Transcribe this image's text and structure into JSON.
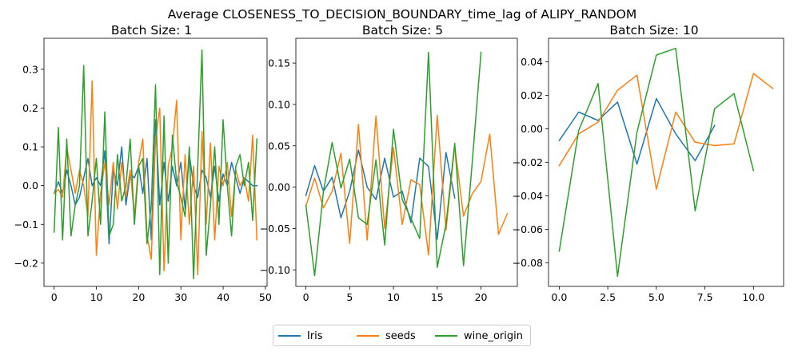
{
  "suptitle": "Average CLOSENESS_TO_DECISION_BOUNDARY_time_lag of ALIPY_RANDOM",
  "legend": {
    "items": [
      {
        "label": "Iris",
        "color": "#1f77b4"
      },
      {
        "label": "seeds",
        "color": "#ff7f0e"
      },
      {
        "label": "wine_origin",
        "color": "#2ca02c"
      }
    ],
    "placement": "bottom-center"
  },
  "chart_data": [
    {
      "type": "line",
      "title": "Batch Size: 1",
      "xlim": [
        -2.4,
        50.4
      ],
      "ylim": [
        -0.26,
        0.38
      ],
      "xticks": [
        0,
        10,
        20,
        30,
        40,
        50
      ],
      "yticks": [
        -0.2,
        -0.1,
        0.0,
        0.1,
        0.2,
        0.3
      ],
      "ytick_labels": [
        "−0.2",
        "−0.1",
        "0.0",
        "0.1",
        "0.2",
        "0.3"
      ],
      "series": [
        {
          "name": "Iris",
          "color": "#1f77b4",
          "x": [
            0,
            1,
            2,
            3,
            4,
            5,
            6,
            7,
            8,
            9,
            10,
            11,
            12,
            13,
            14,
            15,
            16,
            17,
            18,
            19,
            20,
            21,
            22,
            23,
            24,
            25,
            26,
            27,
            28,
            29,
            30,
            31,
            32,
            33,
            34,
            35,
            36,
            37,
            38,
            39,
            40,
            41,
            42,
            43,
            44,
            45,
            46,
            47,
            48
          ],
          "y": [
            -0.02,
            0.01,
            -0.02,
            0.04,
            0.0,
            -0.05,
            -0.03,
            0.02,
            0.07,
            0.0,
            0.02,
            0.0,
            0.09,
            -0.15,
            0.04,
            0.0,
            0.1,
            -0.05,
            0.03,
            0.02,
            0.05,
            -0.02,
            0.07,
            -0.14,
            0.17,
            -0.05,
            0.06,
            -0.04,
            0.05,
            0.0,
            0.06,
            -0.06,
            0.08,
            0.0,
            -0.03,
            0.04,
            0.02,
            -0.03,
            0.05,
            -0.04,
            0.03,
            0.0,
            0.06,
            0.02,
            -0.02,
            0.02,
            0.01,
            0.0,
            0.0
          ]
        },
        {
          "name": "seeds",
          "color": "#ff7f0e",
          "x": [
            0,
            1,
            2,
            3,
            4,
            5,
            6,
            7,
            8,
            9,
            10,
            11,
            12,
            13,
            14,
            15,
            16,
            17,
            18,
            19,
            20,
            21,
            22,
            23,
            24,
            25,
            26,
            27,
            28,
            29,
            30,
            31,
            32,
            33,
            34,
            35,
            36,
            37,
            38,
            39,
            40,
            41,
            42,
            43,
            44,
            45,
            46,
            47,
            48
          ],
          "y": [
            -0.02,
            -0.01,
            -0.03,
            0.1,
            0.04,
            -0.02,
            0.04,
            0.0,
            -0.08,
            0.27,
            -0.18,
            -0.02,
            0.06,
            -0.05,
            0.06,
            -0.06,
            0.06,
            -0.03,
            0.04,
            -0.08,
            0.06,
            0.12,
            -0.13,
            -0.19,
            0.12,
            0.2,
            -0.22,
            0.05,
            0.1,
            0.22,
            -0.14,
            0.08,
            -0.1,
            0.05,
            -0.23,
            0.14,
            -0.1,
            0.11,
            -0.14,
            0.05,
            0.0,
            0.06,
            -0.08,
            0.04,
            0.0,
            0.02,
            -0.04,
            0.13,
            -0.14
          ]
        },
        {
          "name": "wine_origin",
          "color": "#2ca02c",
          "x": [
            0,
            1,
            2,
            3,
            4,
            5,
            6,
            7,
            8,
            9,
            10,
            11,
            12,
            13,
            14,
            15,
            16,
            17,
            18,
            19,
            20,
            21,
            22,
            23,
            24,
            25,
            26,
            27,
            28,
            29,
            30,
            31,
            32,
            33,
            34,
            35,
            36,
            37,
            38,
            39,
            40,
            41,
            42,
            43,
            44,
            45,
            46,
            47,
            48
          ],
          "y": [
            -0.12,
            0.15,
            -0.14,
            0.12,
            -0.13,
            -0.05,
            0.0,
            0.31,
            -0.13,
            -0.04,
            0.07,
            -0.1,
            0.19,
            -0.13,
            -0.1,
            0.08,
            -0.04,
            0.0,
            0.12,
            -0.1,
            0.05,
            0.07,
            -0.15,
            -0.05,
            0.26,
            -0.23,
            0.18,
            -0.2,
            0.13,
            0.01,
            -0.03,
            -0.08,
            0.1,
            -0.24,
            0.05,
            0.35,
            -0.18,
            -0.05,
            0.1,
            -0.1,
            0.17,
            0.0,
            -0.13,
            0.05,
            0.08,
            0.0,
            0.06,
            -0.09,
            0.12
          ]
        }
      ]
    },
    {
      "type": "line",
      "title": "Batch Size: 5",
      "xlim": [
        -1.15,
        24.15
      ],
      "ylim": [
        -0.12,
        0.18
      ],
      "xticks": [
        0,
        5,
        10,
        15,
        20
      ],
      "yticks": [
        -0.1,
        -0.05,
        0.0,
        0.05,
        0.1,
        0.15
      ],
      "ytick_labels": [
        "−0.10",
        "−0.05",
        "0.00",
        "0.05",
        "0.10",
        "0.15"
      ],
      "series": [
        {
          "name": "Iris",
          "color": "#1f77b4",
          "x": [
            0,
            1,
            2,
            3,
            4,
            5,
            6,
            7,
            8,
            9,
            10,
            11,
            12,
            13,
            14,
            15,
            16,
            17
          ],
          "y": [
            -0.01,
            0.026,
            -0.005,
            0.012,
            -0.037,
            -0.005,
            0.045,
            0.0,
            -0.015,
            0.035,
            -0.012,
            -0.005,
            -0.043,
            0.035,
            0.025,
            -0.063,
            0.042,
            -0.013
          ]
        },
        {
          "name": "seeds",
          "color": "#ff7f0e",
          "x": [
            0,
            1,
            2,
            3,
            4,
            5,
            6,
            7,
            8,
            9,
            10,
            11,
            12,
            13,
            14,
            15,
            16,
            17,
            18,
            19,
            20,
            21,
            22,
            23
          ],
          "y": [
            -0.023,
            0.011,
            -0.025,
            -0.005,
            0.041,
            -0.068,
            0.076,
            -0.064,
            0.086,
            -0.05,
            0.048,
            -0.045,
            0.009,
            0.003,
            -0.082,
            0.087,
            -0.052,
            0.05,
            -0.035,
            -0.008,
            0.007,
            0.064,
            -0.057,
            -0.032
          ]
        },
        {
          "name": "wine_origin",
          "color": "#2ca02c",
          "x": [
            0,
            1,
            2,
            3,
            4,
            5,
            6,
            7,
            8,
            9,
            10,
            11,
            12,
            13,
            14,
            15,
            16,
            17,
            18,
            19,
            20
          ],
          "y": [
            -0.022,
            -0.107,
            -0.005,
            0.054,
            -0.001,
            0.034,
            -0.037,
            -0.045,
            0.033,
            -0.07,
            0.07,
            -0.015,
            -0.038,
            -0.062,
            0.163,
            -0.097,
            -0.045,
            0.053,
            -0.095,
            0.03,
            0.163
          ]
        }
      ]
    },
    {
      "type": "line",
      "title": "Batch Size: 10",
      "xlim": [
        -0.55,
        11.55
      ],
      "ylim": [
        -0.094,
        0.054
      ],
      "xticks": [
        0.0,
        2.5,
        5.0,
        7.5,
        10.0
      ],
      "xtick_labels": [
        "0.0",
        "2.5",
        "5.0",
        "7.5",
        "10.0"
      ],
      "yticks": [
        -0.08,
        -0.06,
        -0.04,
        -0.02,
        0.0,
        0.02,
        0.04
      ],
      "ytick_labels": [
        "−0.08",
        "−0.06",
        "−0.04",
        "−0.02",
        "0.00",
        "0.02",
        "0.04"
      ],
      "series": [
        {
          "name": "Iris",
          "color": "#1f77b4",
          "x": [
            0,
            1,
            2,
            3,
            4,
            5,
            6,
            7,
            8
          ],
          "y": [
            -0.007,
            0.01,
            0.005,
            0.016,
            -0.021,
            0.018,
            -0.003,
            -0.019,
            0.002
          ]
        },
        {
          "name": "seeds",
          "color": "#ff7f0e",
          "x": [
            0,
            1,
            2,
            3,
            4,
            5,
            6,
            7,
            8,
            9,
            10,
            11
          ],
          "y": [
            -0.022,
            -0.003,
            0.004,
            0.023,
            0.032,
            -0.036,
            0.01,
            -0.008,
            -0.01,
            -0.009,
            0.033,
            0.024
          ]
        },
        {
          "name": "wine_origin",
          "color": "#2ca02c",
          "x": [
            0,
            1,
            2,
            3,
            4,
            5,
            6,
            7,
            8,
            9,
            10
          ],
          "y": [
            -0.073,
            -0.001,
            0.027,
            -0.088,
            -0.002,
            0.044,
            0.048,
            -0.049,
            0.012,
            0.021,
            -0.025
          ]
        }
      ]
    }
  ]
}
